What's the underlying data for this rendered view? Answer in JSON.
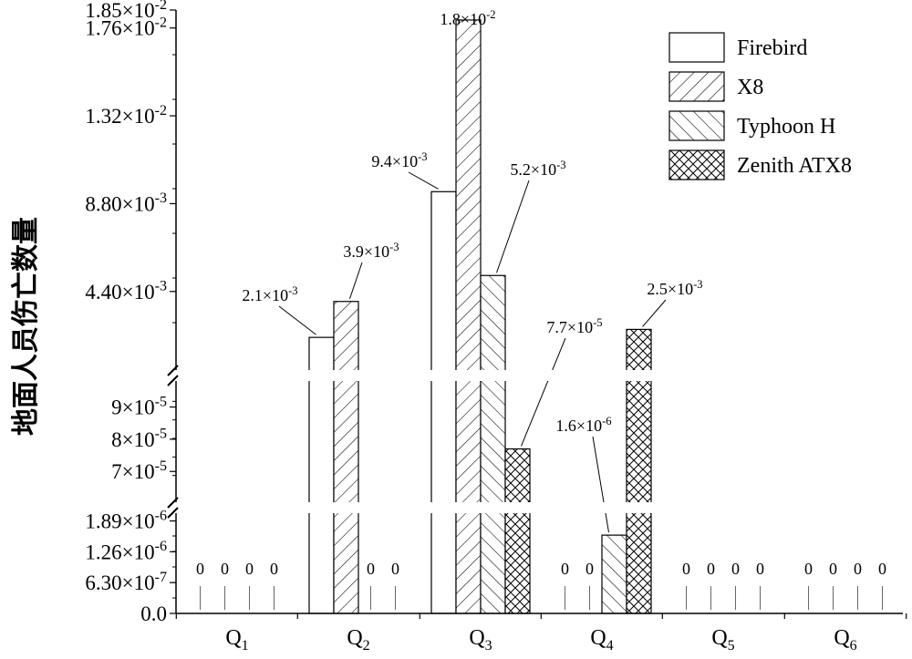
{
  "chart_data": {
    "type": "bar",
    "broken_axis": true,
    "ylabel": "地面人员伤亡数量",
    "categories": [
      {
        "base": "Q",
        "sub": "1"
      },
      {
        "base": "Q",
        "sub": "2"
      },
      {
        "base": "Q",
        "sub": "3"
      },
      {
        "base": "Q",
        "sub": "4"
      },
      {
        "base": "Q",
        "sub": "5"
      },
      {
        "base": "Q",
        "sub": "6"
      }
    ],
    "series": [
      {
        "name": "Firebird",
        "pattern": "none",
        "values": [
          0,
          0.0021,
          0.0094,
          0,
          0,
          0
        ]
      },
      {
        "name": "X8",
        "pattern": "diag-forward",
        "values": [
          0,
          0.0039,
          0.018,
          0,
          0,
          0
        ]
      },
      {
        "name": "Typhoon H",
        "pattern": "diag-back",
        "values": [
          0,
          0,
          0.0052,
          1.6e-06,
          0,
          0
        ]
      },
      {
        "name": "Zenith ATX8",
        "pattern": "crosshatch",
        "values": [
          0,
          0,
          7.7e-05,
          0.0025,
          0,
          0
        ]
      }
    ],
    "y_segments": [
      {
        "range": [
          0,
          1.9e-06
        ],
        "ticks": [
          {
            "value": 0,
            "label": "0.0"
          },
          {
            "value": 6.3e-07,
            "label": "6.30×10",
            "exp": "-7"
          },
          {
            "value": 1.26e-06,
            "label": "1.26×10",
            "exp": "-6"
          },
          {
            "value": 1.89e-06,
            "label": "1.89×10",
            "exp": "-6"
          }
        ]
      },
      {
        "range": [
          6.3e-05,
          9.75e-05
        ],
        "ticks": [
          {
            "value": 7e-05,
            "label": "7×10",
            "exp": "-5"
          },
          {
            "value": 8e-05,
            "label": "8×10",
            "exp": "-5"
          },
          {
            "value": 9e-05,
            "label": "9×10",
            "exp": "-5"
          }
        ]
      },
      {
        "range": [
          0.0006,
          0.0185
        ],
        "ticks": [
          {
            "value": 0.0044,
            "label": "4.40×10",
            "exp": "-3"
          },
          {
            "value": 0.0088,
            "label": "8.80×10",
            "exp": "-3"
          },
          {
            "value": 0.0132,
            "label": "1.32×10",
            "exp": "-2"
          },
          {
            "value": 0.0176,
            "label": "1.76×10",
            "exp": "-2"
          },
          {
            "value": 0.0185,
            "label": "1.85×10",
            "exp": "-2"
          }
        ]
      }
    ],
    "data_labels": [
      {
        "series": 0,
        "cat": 1,
        "text": "2.1×10",
        "exp": "-3"
      },
      {
        "series": 1,
        "cat": 1,
        "text": "3.9×10",
        "exp": "-3"
      },
      {
        "series": 0,
        "cat": 2,
        "text": "9.4×10",
        "exp": "-3"
      },
      {
        "series": 1,
        "cat": 2,
        "text": "1.8×10",
        "exp": "-2"
      },
      {
        "series": 2,
        "cat": 2,
        "text": "5.2×10",
        "exp": "-3"
      },
      {
        "series": 3,
        "cat": 2,
        "text": "7.7×10",
        "exp": "-5"
      },
      {
        "series": 2,
        "cat": 3,
        "text": "1.6×10",
        "exp": "-6"
      },
      {
        "series": 3,
        "cat": 3,
        "text": "2.5×10",
        "exp": "-3"
      },
      {
        "series": 0,
        "cat": 0,
        "text": "0"
      },
      {
        "series": 1,
        "cat": 0,
        "text": "0"
      },
      {
        "series": 2,
        "cat": 0,
        "text": "0"
      },
      {
        "series": 3,
        "cat": 0,
        "text": "0"
      },
      {
        "series": 2,
        "cat": 1,
        "text": "0"
      },
      {
        "series": 3,
        "cat": 1,
        "text": "0"
      },
      {
        "series": 0,
        "cat": 3,
        "text": "0"
      },
      {
        "series": 1,
        "cat": 3,
        "text": "0"
      },
      {
        "series": 0,
        "cat": 4,
        "text": "0"
      },
      {
        "series": 1,
        "cat": 4,
        "text": "0"
      },
      {
        "series": 2,
        "cat": 4,
        "text": "0"
      },
      {
        "series": 3,
        "cat": 4,
        "text": "0"
      },
      {
        "series": 0,
        "cat": 5,
        "text": "0"
      },
      {
        "series": 1,
        "cat": 5,
        "text": "0"
      },
      {
        "series": 2,
        "cat": 5,
        "text": "0"
      },
      {
        "series": 3,
        "cat": 5,
        "text": "0"
      }
    ],
    "legend": {
      "position": "top-right"
    },
    "grid": false
  }
}
